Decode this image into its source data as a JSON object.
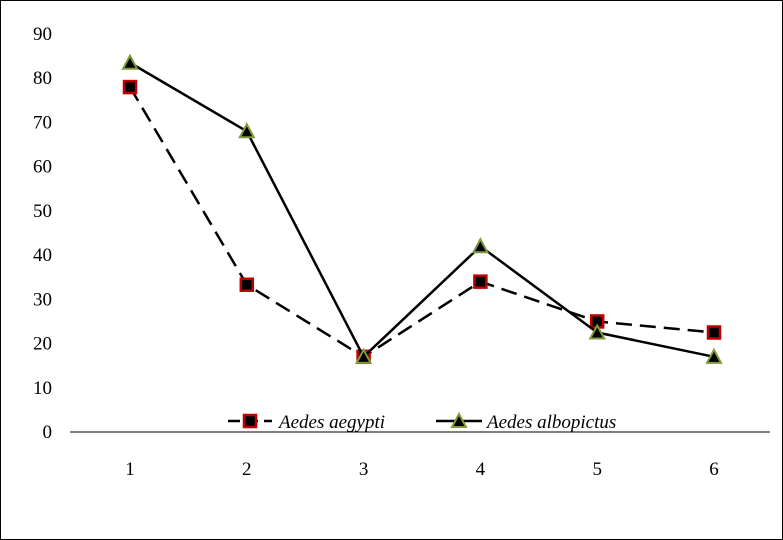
{
  "chart_data": {
    "type": "line",
    "title": "",
    "xlabel": "",
    "ylabel": "",
    "categories": [
      "1",
      "2",
      "3",
      "4",
      "5",
      "6"
    ],
    "y_ticks": [
      "0",
      "10",
      "20",
      "30",
      "40",
      "50",
      "60",
      "70",
      "80",
      "90"
    ],
    "ylim": [
      0,
      90
    ],
    "grid": false,
    "legend_position": "bottom-inside",
    "series": [
      {
        "name": "Aedes aegypti",
        "values": [
          78,
          33.3,
          17,
          34,
          25,
          22.5
        ],
        "line_style": "dashed",
        "marker": "square",
        "marker_color": "#c00000",
        "line_color": "#000000"
      },
      {
        "name": "Aedes albopictus",
        "values": [
          83.5,
          68,
          17,
          42,
          22.5,
          17
        ],
        "line_style": "solid",
        "marker": "triangle",
        "marker_color": "#7f9a3a",
        "line_color": "#000000"
      }
    ]
  }
}
